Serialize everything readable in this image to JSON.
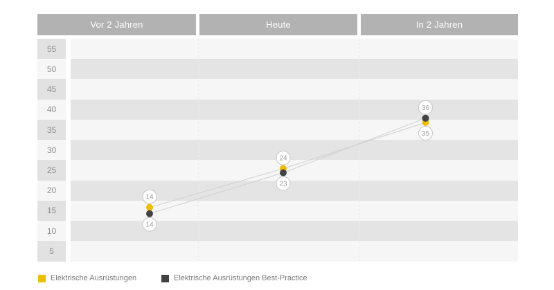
{
  "chart_data": {
    "type": "line",
    "title": "",
    "categories": [
      "Vor 2 Jahren",
      "Heute",
      "In 2 Jahren"
    ],
    "series": [
      {
        "name": "Elektrische Ausrüstungen",
        "color": "#edbd00",
        "values": [
          14,
          24,
          35
        ]
      },
      {
        "name": "Elektrische Ausrüstungen Best-Practice",
        "color": "#424242",
        "values": [
          14,
          23,
          36
        ]
      }
    ],
    "y_ticks": [
      55,
      50,
      45,
      40,
      35,
      30,
      25,
      20,
      15,
      10,
      5
    ],
    "ylim": [
      0,
      57.5
    ],
    "point_labels_visible": true,
    "grid": "alternating-horizontal-bands",
    "legend_position": "bottom-left",
    "connector_line_color": "#cfcfcf"
  },
  "legend": {
    "items": [
      {
        "label": "Elektrische Ausrüstungen",
        "color": "#edbd00"
      },
      {
        "label": "Elektrische Ausrüstungen Best-Practice",
        "color": "#424242"
      }
    ]
  },
  "colors": {
    "header_bg": "#b2b2b2",
    "header_text": "#ffffff",
    "band_light": "#f6f6f6",
    "band_dark": "#e4e4e4",
    "axis_cell_light": "#f6f6f6",
    "axis_cell_dark": "#e2e2e2",
    "axis_text": "#8b8b8b",
    "point_label_text": "#9a9a9a",
    "point_label_border": "#c6c6c6",
    "point_label_fill": "#ffffff",
    "legend_text": "#7b7b7b",
    "dashed_line": "#ebebeb"
  }
}
